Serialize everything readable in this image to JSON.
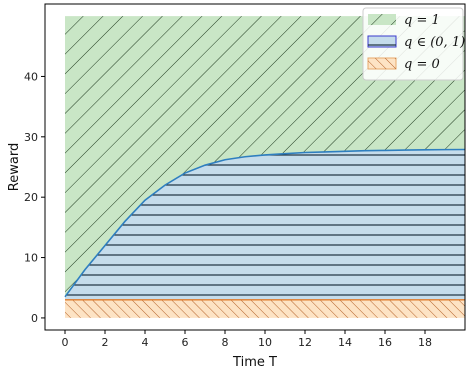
{
  "chart_data": {
    "type": "area",
    "xlabel": "Time T",
    "ylabel": "Reward",
    "xlim": [
      -1,
      20
    ],
    "ylim": [
      -2,
      52
    ],
    "x_ticks": [
      0,
      2,
      4,
      6,
      8,
      10,
      12,
      14,
      16,
      18
    ],
    "y_ticks": [
      0,
      10,
      20,
      30,
      40
    ],
    "legend_position": "top-right",
    "grid": false,
    "series": [
      {
        "name": "q = 1",
        "region": "above curve, up to 50",
        "color": "#c9e6c6",
        "hatch": "\\"
      },
      {
        "name": "q ∈ (0, 1)",
        "region": "between 3 and curve",
        "color": "#c5dceb",
        "hatch": "-"
      },
      {
        "name": "q = 0",
        "region": "between 0 and 3",
        "color": "#fde3c4",
        "hatch": "/"
      }
    ],
    "boundary_curve": {
      "x": [
        0,
        1,
        2,
        3,
        4,
        5,
        6,
        7,
        8,
        9,
        10,
        11,
        12,
        13,
        14,
        15,
        16,
        17,
        18,
        19,
        20
      ],
      "y": [
        3.5,
        8,
        12,
        16,
        19.5,
        22,
        24,
        25.3,
        26.2,
        26.7,
        27.0,
        27.2,
        27.4,
        27.5,
        27.6,
        27.7,
        27.75,
        27.8,
        27.85,
        27.88,
        27.9
      ]
    },
    "q0_upper": 3,
    "top_value": 50
  }
}
